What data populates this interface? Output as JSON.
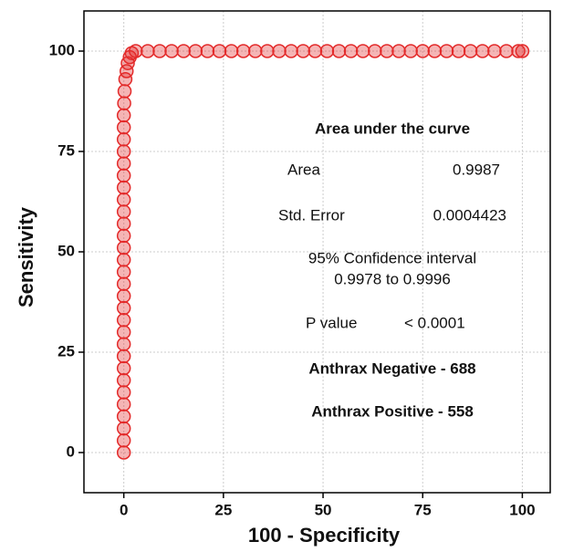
{
  "chart_data": {
    "type": "scatter",
    "xlabel": "100 - Specificity",
    "ylabel": "Sensitivity",
    "xlim": [
      -10,
      107
    ],
    "ylim": [
      -10,
      110
    ],
    "xticks": [
      0,
      25,
      50,
      75,
      100
    ],
    "yticks": [
      0,
      25,
      50,
      75,
      100
    ],
    "grid": true,
    "color": "#e32a2a",
    "x": [
      0,
      0,
      0,
      0,
      0,
      0,
      0,
      0,
      0,
      0,
      0,
      0,
      0,
      0,
      0,
      0,
      0,
      0,
      0,
      0,
      0,
      0,
      0,
      0,
      0,
      0,
      0,
      0,
      0,
      0.1,
      0.2,
      0.4,
      0.7,
      1,
      1.5,
      2,
      3,
      6,
      9,
      12,
      15,
      18,
      21,
      24,
      27,
      30,
      33,
      36,
      39,
      42,
      45,
      48,
      51,
      54,
      57,
      60,
      63,
      66,
      69,
      72,
      75,
      78,
      81,
      84,
      87,
      90,
      93,
      96,
      99,
      100
    ],
    "y": [
      0,
      3,
      6,
      9,
      12,
      15,
      18,
      21,
      24,
      27,
      30,
      33,
      36,
      39,
      42,
      45,
      48,
      51,
      54,
      57,
      60,
      63,
      66,
      69,
      72,
      75,
      78,
      81,
      84,
      87,
      90,
      93,
      95,
      97,
      98.5,
      99.5,
      100,
      100,
      100,
      100,
      100,
      100,
      100,
      100,
      100,
      100,
      100,
      100,
      100,
      100,
      100,
      100,
      100,
      100,
      100,
      100,
      100,
      100,
      100,
      100,
      100,
      100,
      100,
      100,
      100,
      100,
      100,
      100,
      100,
      100
    ],
    "annotation": {
      "title": "Area under the curve",
      "area_label": "Area",
      "area_value": "0.9987",
      "se_label": "Std. Error",
      "se_value": "0.0004423",
      "ci_label": "95% Confidence interval",
      "ci_value": "0.9978 to 0.9996",
      "p_label": "P value",
      "p_value": "< 0.0001",
      "negative": "Anthrax Negative -  688",
      "positive": "Anthrax Positive  -  558"
    }
  }
}
